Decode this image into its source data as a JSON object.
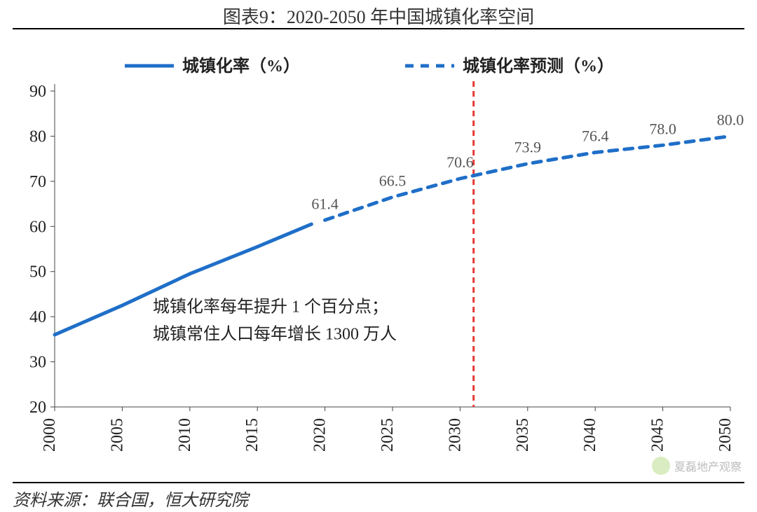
{
  "title": "图表9：2020-2050 年中国城镇化率空间",
  "source": "资料来源：联合国，恒大研究院",
  "watermark": "夏磊地产观察",
  "legend": {
    "series1": "城镇化率（%）",
    "series2": "城镇化率预测（%）"
  },
  "annotation": {
    "line1": "城镇化率每年提升 1 个百分点；",
    "line2": "城镇常住人口每年增长 1300 万人"
  },
  "chart": {
    "type": "line",
    "x_categories": [
      "2000",
      "2005",
      "2010",
      "2015",
      "2020",
      "2025",
      "2030",
      "2035",
      "2040",
      "2045",
      "2050"
    ],
    "ylim": [
      20,
      90
    ],
    "ytick_step": 10,
    "series_actual": {
      "color": "#1f6fc8",
      "line_width": 5,
      "dash": "none",
      "points": [
        {
          "x": "2000",
          "y": 36.0
        },
        {
          "x": "2005",
          "y": 42.5
        },
        {
          "x": "2010",
          "y": 49.5
        },
        {
          "x": "2015",
          "y": 55.5
        },
        {
          "x": "2019",
          "y": 60.5
        }
      ]
    },
    "series_forecast": {
      "color": "#1f6fc8",
      "line_width": 5,
      "dash": "12,10",
      "points": [
        {
          "x": "2020",
          "y": 61.4,
          "label": "61.4"
        },
        {
          "x": "2025",
          "y": 66.5,
          "label": "66.5"
        },
        {
          "x": "2030",
          "y": 70.6,
          "label": "70.6"
        },
        {
          "x": "2035",
          "y": 73.9,
          "label": "73.9"
        },
        {
          "x": "2040",
          "y": 76.4,
          "label": "76.4"
        },
        {
          "x": "2045",
          "y": 78.0,
          "label": "78.0"
        },
        {
          "x": "2050",
          "y": 80.0,
          "label": "80.0"
        }
      ]
    },
    "vline": {
      "x": "2031",
      "color": "#e53935",
      "dash": "8,6",
      "width": 3
    },
    "grid_color": "#e8e8e8",
    "axis_color": "#444444",
    "background_color": "#ffffff",
    "tick_fontsize": 24,
    "label_fontsize": 24
  }
}
